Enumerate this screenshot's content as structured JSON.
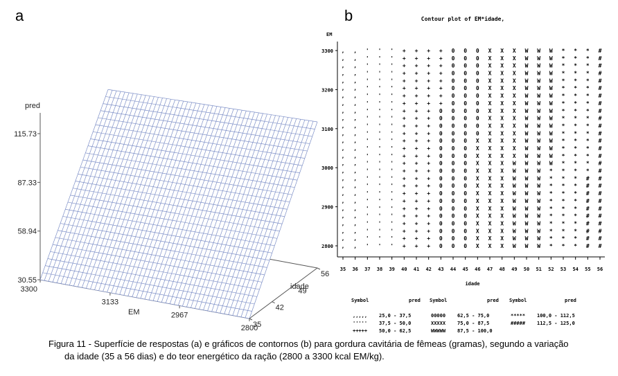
{
  "figure": {
    "panel_a_letter": "a",
    "panel_b_letter": "b",
    "caption_line1": "Figura 11 - Superfície de respostas (a) e gráficos de contornos (b) para gordura cavitária de fêmeas (gramas), segundo a variação",
    "caption_line2": "da idade (35 a 56 dias) e do teor energético da ração (2800 a 3300 kcal EM/kg)."
  },
  "colors": {
    "mesh": "#7d8fc7",
    "axis": "#555555",
    "text": "#000000"
  },
  "chart_data": [
    {
      "type": "surface",
      "panel": "a",
      "zlabel": "pred",
      "xlabel": "EM",
      "ylabel": "idade",
      "z_ticks": [
        "30.55",
        "58.94",
        "87.33",
        "115.73"
      ],
      "z_range": [
        30.55,
        115.73
      ],
      "em_ticks": [
        "3300",
        "3133",
        "2967",
        "2800"
      ],
      "em_range": [
        2800,
        3300
      ],
      "idade_ticks": [
        "35",
        "42",
        "49",
        "56"
      ],
      "idade_range": [
        35,
        56
      ],
      "surface_corners": {
        "em2800_idade35": 30.55,
        "em2800_idade56": 115.73,
        "em3300_idade35": 30.55,
        "em3300_idade56": 112
      }
    },
    {
      "type": "contour",
      "panel": "b",
      "title": "Contour plot of EM*idade,",
      "ylabel": "EM",
      "xlabel": "idade",
      "y_ticks": [
        "3300",
        "3200",
        "3100",
        "3000",
        "2900",
        "2800"
      ],
      "y_range": [
        2800,
        3300
      ],
      "x_ticks": [
        "35",
        "36",
        "37",
        "38",
        "39",
        "40",
        "41",
        "42",
        "43",
        "44",
        "45",
        "46",
        "47",
        "48",
        "49",
        "50",
        "51",
        "52",
        "53",
        "54",
        "55",
        "56"
      ],
      "x_range": [
        35,
        56
      ],
      "legend_headers": [
        "Symbol",
        "pred",
        "Symbol",
        "pred",
        "Symbol",
        "pred"
      ],
      "legend": [
        {
          "symbol": ",,,,,",
          "range": "25,0 -  37,5"
        },
        {
          "symbol": "'''''",
          "range": "37,5 -  50,0"
        },
        {
          "symbol": "+++++",
          "range": "50,0 -  62,5"
        },
        {
          "symbol": "00000",
          "range": "62,5 -  75,0"
        },
        {
          "symbol": "XXXXX",
          "range": "75,0 -  87,5"
        },
        {
          "symbol": "WWWWW",
          "range": "87,5 - 100,0"
        },
        {
          "symbol": "*****",
          "range": "100,0 - 112,5"
        },
        {
          "symbol": "#####",
          "range": "112,5 - 125,0"
        }
      ],
      "model": {
        "pred_at_idade35": 30.55,
        "pred_at_idade56": 115.73
      }
    }
  ]
}
